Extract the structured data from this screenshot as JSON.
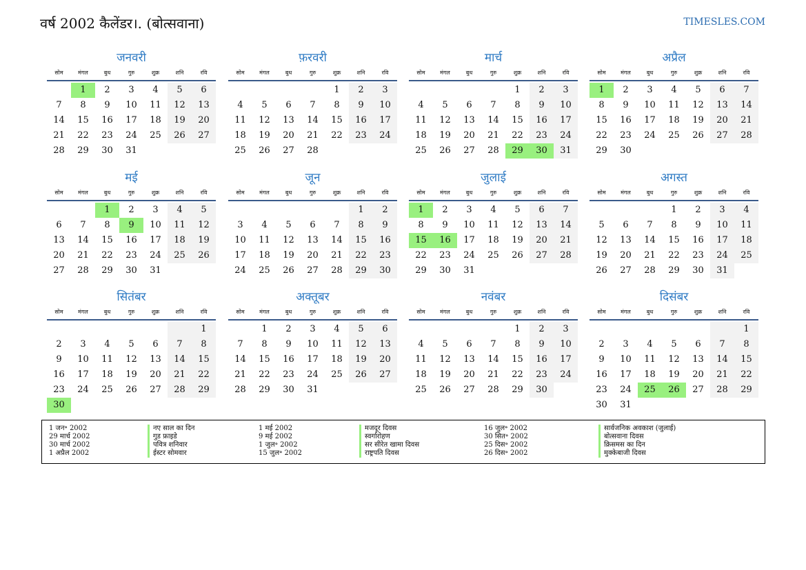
{
  "header": {
    "title": "वर्ष 2002 कैलेंडर।. (बोत्सवाना)",
    "site": "TIMESLES.COM"
  },
  "weekdays": [
    "सोम",
    "मंगल",
    "बुध",
    "गुरु",
    "शुक्र",
    "शनि",
    "रवि"
  ],
  "colors": {
    "holiday": "#99f07f",
    "weekend": "#f2f2f2",
    "accent": "#2f7bc4"
  },
  "months": [
    {
      "name": "जनवरी",
      "days": 31,
      "start": 1,
      "holidays": [
        1
      ]
    },
    {
      "name": "फ़रवरी",
      "days": 28,
      "start": 4,
      "holidays": []
    },
    {
      "name": "मार्च",
      "days": 31,
      "start": 4,
      "holidays": [
        29,
        30
      ]
    },
    {
      "name": "अप्रैल",
      "days": 30,
      "start": 0,
      "holidays": [
        1
      ]
    },
    {
      "name": "मई",
      "days": 31,
      "start": 2,
      "holidays": [
        1,
        9
      ]
    },
    {
      "name": "जून",
      "days": 30,
      "start": 5,
      "holidays": []
    },
    {
      "name": "जुलाई",
      "days": 31,
      "start": 0,
      "holidays": [
        1,
        15,
        16
      ]
    },
    {
      "name": "अगस्त",
      "days": 31,
      "start": 3,
      "holidays": []
    },
    {
      "name": "सितंबर",
      "days": 30,
      "start": 6,
      "holidays": [
        30
      ]
    },
    {
      "name": "अक्तूबर",
      "days": 31,
      "start": 1,
      "holidays": []
    },
    {
      "name": "नवंबर",
      "days": 30,
      "start": 4,
      "holidays": []
    },
    {
      "name": "दिसंबर",
      "days": 31,
      "start": 6,
      "holidays": [
        25,
        26
      ]
    }
  ],
  "legend": [
    [
      {
        "date": "1 जन॰ 2002",
        "name": "नए साल का दिन"
      },
      {
        "date": "29 मार्च 2002",
        "name": "गुड फ्राइडे"
      },
      {
        "date": "30 मार्च 2002",
        "name": "पवित्र शनिवार"
      },
      {
        "date": "1 अप्रैल 2002",
        "name": "ईस्टर सोमवार"
      }
    ],
    [
      {
        "date": "1 मई 2002",
        "name": "मजदूर दिवस"
      },
      {
        "date": "9 मई 2002",
        "name": "स्वर्गारोहण"
      },
      {
        "date": "1 जुल॰ 2002",
        "name": "सर सीरेत खामा दिवस"
      },
      {
        "date": "15 जुल॰ 2002",
        "name": "राष्ट्रपति दिवस"
      }
    ],
    [
      {
        "date": "16 जुल॰ 2002",
        "name": "सार्वजनिक अवकाश (जुलाई)"
      },
      {
        "date": "30 सित॰ 2002",
        "name": "बोत्सवाना दिवस"
      },
      {
        "date": "25 दिस॰ 2002",
        "name": "क्रिसमस का दिन"
      },
      {
        "date": "26 दिस॰ 2002",
        "name": "मुक्केबाजी दिवस"
      }
    ]
  ]
}
